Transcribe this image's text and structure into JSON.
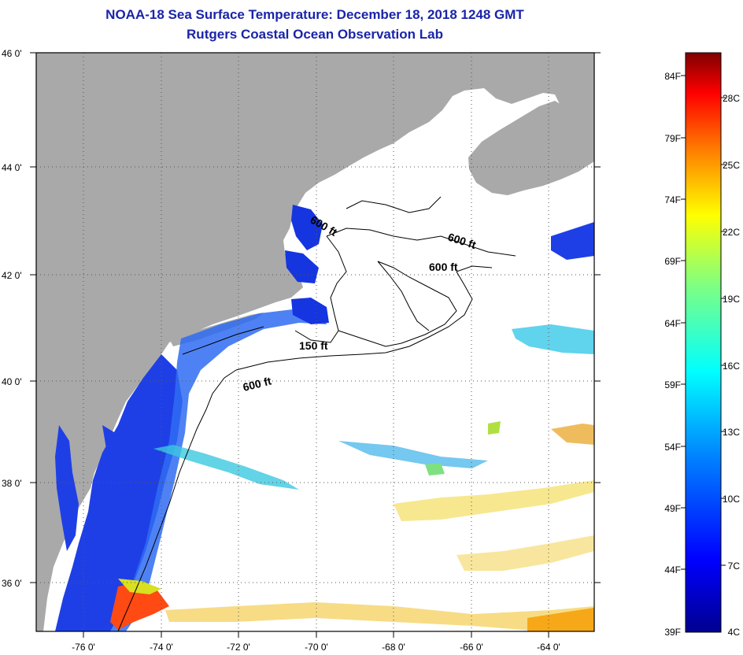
{
  "title": "NOAA-18 Sea Surface Temperature:  December 18, 2018 1248 GMT",
  "subtitle": "Rutgers Coastal Ocean Observation Lab",
  "lat_labels": [
    "46 0'",
    "44 0'",
    "42 0'",
    "40 0'",
    "38 0'",
    "36 0'"
  ],
  "lon_labels": [
    "-76 0'",
    "-74 0'",
    "-72 0'",
    "-70 0'",
    "-68 0'",
    "-66 0'",
    "-64 0'"
  ],
  "isobaths": [
    "600 ft",
    "600 ft",
    "600 ft",
    "150 ft",
    "600 ft"
  ],
  "colorbar": {
    "fahrenheit": [
      "84F",
      "79F",
      "74F",
      "69F",
      "64F",
      "59F",
      "54F",
      "49F",
      "44F",
      "39F"
    ],
    "celsius": [
      "28C",
      "25C",
      "22C",
      "19C",
      "16C",
      "13C",
      "10C",
      "7C",
      "4C"
    ],
    "colors": [
      "#00008f",
      "#0000ff",
      "#0080ff",
      "#00ffff",
      "#80ff80",
      "#ffff00",
      "#ff8000",
      "#ff0000",
      "#800000"
    ]
  },
  "colors": {
    "land": "#a9a9a9",
    "title": "#1a24a8",
    "ocean_no_data": "#ffffff"
  }
}
